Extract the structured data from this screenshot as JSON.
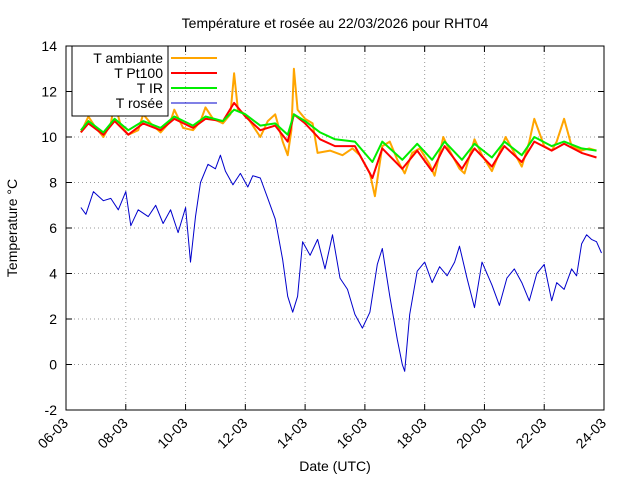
{
  "chart_data": {
    "type": "line",
    "title": "Température et rosée au 22/03/2026 pour RHT04",
    "xlabel": "Date (UTC)",
    "ylabel": "Temperature °C",
    "xlim": [
      "2026-03-06",
      "2026-03-24"
    ],
    "ylim": [
      -2,
      14
    ],
    "x_ticks": [
      "06-03",
      "08-03",
      "10-03",
      "12-03",
      "14-03",
      "16-03",
      "18-03",
      "20-03",
      "22-03",
      "24-03"
    ],
    "y_ticks": [
      -2,
      0,
      2,
      4,
      6,
      8,
      10,
      12,
      14
    ],
    "grid": true,
    "legend_position": "top-left",
    "series": [
      {
        "name": "T ambiante",
        "color": "#ffa500",
        "points": [
          [
            "2026-03-06 12:00",
            10.2
          ],
          [
            "2026-03-06 18:00",
            10.9
          ],
          [
            "2026-03-07 00:00",
            10.4
          ],
          [
            "2026-03-07 06:00",
            10.0
          ],
          [
            "2026-03-07 12:00",
            10.6
          ],
          [
            "2026-03-07 15:00",
            11.5
          ],
          [
            "2026-03-07 20:00",
            10.5
          ],
          [
            "2026-03-08 02:00",
            10.1
          ],
          [
            "2026-03-08 10:00",
            10.3
          ],
          [
            "2026-03-08 14:00",
            11.0
          ],
          [
            "2026-03-08 20:00",
            10.6
          ],
          [
            "2026-03-09 04:00",
            10.2
          ],
          [
            "2026-03-09 12:00",
            10.7
          ],
          [
            "2026-03-09 15:00",
            11.2
          ],
          [
            "2026-03-09 22:00",
            10.4
          ],
          [
            "2026-03-10 06:00",
            10.3
          ],
          [
            "2026-03-10 12:00",
            10.7
          ],
          [
            "2026-03-10 16:00",
            11.3
          ],
          [
            "2026-03-10 22:00",
            10.8
          ],
          [
            "2026-03-11 06:00",
            10.6
          ],
          [
            "2026-03-11 12:00",
            11.0
          ],
          [
            "2026-03-11 15:00",
            12.8
          ],
          [
            "2026-03-11 18:00",
            11.2
          ],
          [
            "2026-03-12 00:00",
            11.0
          ],
          [
            "2026-03-12 06:00",
            10.5
          ],
          [
            "2026-03-12 12:00",
            10.0
          ],
          [
            "2026-03-12 18:00",
            10.7
          ],
          [
            "2026-03-13 00:00",
            11.0
          ],
          [
            "2026-03-13 06:00",
            9.8
          ],
          [
            "2026-03-13 10:00",
            9.2
          ],
          [
            "2026-03-13 13:00",
            10.3
          ],
          [
            "2026-03-13 15:00",
            13.0
          ],
          [
            "2026-03-13 18:00",
            11.2
          ],
          [
            "2026-03-14 00:00",
            10.8
          ],
          [
            "2026-03-14 06:00",
            10.6
          ],
          [
            "2026-03-14 10:00",
            9.3
          ],
          [
            "2026-03-14 20:00",
            9.4
          ],
          [
            "2026-03-15 06:00",
            9.2
          ],
          [
            "2026-03-15 14:00",
            9.5
          ],
          [
            "2026-03-15 20:00",
            9.2
          ],
          [
            "2026-03-16 04:00",
            8.4
          ],
          [
            "2026-03-16 08:00",
            7.4
          ],
          [
            "2026-03-16 14:00",
            9.6
          ],
          [
            "2026-03-16 20:00",
            9.8
          ],
          [
            "2026-03-17 02:00",
            9.0
          ],
          [
            "2026-03-17 08:00",
            8.4
          ],
          [
            "2026-03-17 14:00",
            9.3
          ],
          [
            "2026-03-17 20:00",
            9.5
          ],
          [
            "2026-03-18 04:00",
            8.8
          ],
          [
            "2026-03-18 08:00",
            8.3
          ],
          [
            "2026-03-18 15:00",
            10.0
          ],
          [
            "2026-03-18 20:00",
            9.4
          ],
          [
            "2026-03-19 04:00",
            8.6
          ],
          [
            "2026-03-19 08:00",
            8.4
          ],
          [
            "2026-03-19 16:00",
            9.9
          ],
          [
            "2026-03-19 22:00",
            9.2
          ],
          [
            "2026-03-20 06:00",
            8.5
          ],
          [
            "2026-03-20 12:00",
            9.3
          ],
          [
            "2026-03-20 17:00",
            10.0
          ],
          [
            "2026-03-21 00:00",
            9.3
          ],
          [
            "2026-03-21 06:00",
            8.7
          ],
          [
            "2026-03-21 12:00",
            9.8
          ],
          [
            "2026-03-21 16:00",
            10.8
          ],
          [
            "2026-03-22 00:00",
            9.6
          ],
          [
            "2026-03-22 06:00",
            9.4
          ],
          [
            "2026-03-22 10:00",
            9.8
          ],
          [
            "2026-03-22 16:00",
            10.8
          ],
          [
            "2026-03-22 22:00",
            9.6
          ],
          [
            "2026-03-23 06:00",
            9.4
          ],
          [
            "2026-03-23 12:00",
            9.5
          ],
          [
            "2026-03-23 18:00",
            9.4
          ]
        ]
      },
      {
        "name": "T Pt100",
        "color": "#ff0000",
        "points": [
          [
            "2026-03-06 12:00",
            10.2
          ],
          [
            "2026-03-06 18:00",
            10.6
          ],
          [
            "2026-03-07 06:00",
            10.1
          ],
          [
            "2026-03-07 15:00",
            10.7
          ],
          [
            "2026-03-08 02:00",
            10.1
          ],
          [
            "2026-03-08 14:00",
            10.6
          ],
          [
            "2026-03-09 04:00",
            10.3
          ],
          [
            "2026-03-09 15:00",
            10.8
          ],
          [
            "2026-03-10 06:00",
            10.4
          ],
          [
            "2026-03-10 16:00",
            10.8
          ],
          [
            "2026-03-11 06:00",
            10.7
          ],
          [
            "2026-03-11 15:00",
            11.5
          ],
          [
            "2026-03-12 00:00",
            10.9
          ],
          [
            "2026-03-12 12:00",
            10.3
          ],
          [
            "2026-03-13 00:00",
            10.5
          ],
          [
            "2026-03-13 10:00",
            9.8
          ],
          [
            "2026-03-13 15:00",
            11.0
          ],
          [
            "2026-03-14 00:00",
            10.6
          ],
          [
            "2026-03-14 12:00",
            9.9
          ],
          [
            "2026-03-15 00:00",
            9.6
          ],
          [
            "2026-03-15 16:00",
            9.6
          ],
          [
            "2026-03-16 06:00",
            8.2
          ],
          [
            "2026-03-16 14:00",
            9.5
          ],
          [
            "2026-03-17 06:00",
            8.6
          ],
          [
            "2026-03-17 18:00",
            9.4
          ],
          [
            "2026-03-18 06:00",
            8.5
          ],
          [
            "2026-03-18 16:00",
            9.6
          ],
          [
            "2026-03-19 06:00",
            8.6
          ],
          [
            "2026-03-19 16:00",
            9.5
          ],
          [
            "2026-03-20 06:00",
            8.7
          ],
          [
            "2026-03-20 16:00",
            9.6
          ],
          [
            "2026-03-21 06:00",
            8.9
          ],
          [
            "2026-03-21 16:00",
            9.8
          ],
          [
            "2026-03-22 06:00",
            9.4
          ],
          [
            "2026-03-22 16:00",
            9.7
          ],
          [
            "2026-03-23 06:00",
            9.3
          ],
          [
            "2026-03-23 18:00",
            9.1
          ]
        ]
      },
      {
        "name": "T IR",
        "color": "#00ee00",
        "points": [
          [
            "2026-03-06 12:00",
            10.3
          ],
          [
            "2026-03-06 18:00",
            10.7
          ],
          [
            "2026-03-07 06:00",
            10.2
          ],
          [
            "2026-03-07 15:00",
            10.8
          ],
          [
            "2026-03-08 02:00",
            10.3
          ],
          [
            "2026-03-08 14:00",
            10.7
          ],
          [
            "2026-03-09 04:00",
            10.4
          ],
          [
            "2026-03-09 15:00",
            10.9
          ],
          [
            "2026-03-10 06:00",
            10.5
          ],
          [
            "2026-03-10 16:00",
            10.9
          ],
          [
            "2026-03-11 06:00",
            10.7
          ],
          [
            "2026-03-11 15:00",
            11.2
          ],
          [
            "2026-03-12 00:00",
            11.0
          ],
          [
            "2026-03-12 12:00",
            10.5
          ],
          [
            "2026-03-13 00:00",
            10.6
          ],
          [
            "2026-03-13 10:00",
            10.1
          ],
          [
            "2026-03-13 15:00",
            11.0
          ],
          [
            "2026-03-14 00:00",
            10.7
          ],
          [
            "2026-03-14 12:00",
            10.2
          ],
          [
            "2026-03-15 00:00",
            9.9
          ],
          [
            "2026-03-15 16:00",
            9.8
          ],
          [
            "2026-03-16 06:00",
            8.9
          ],
          [
            "2026-03-16 14:00",
            9.8
          ],
          [
            "2026-03-17 06:00",
            9.0
          ],
          [
            "2026-03-17 18:00",
            9.7
          ],
          [
            "2026-03-18 06:00",
            9.0
          ],
          [
            "2026-03-18 16:00",
            9.8
          ],
          [
            "2026-03-19 06:00",
            9.0
          ],
          [
            "2026-03-19 16:00",
            9.7
          ],
          [
            "2026-03-20 06:00",
            9.1
          ],
          [
            "2026-03-20 16:00",
            9.8
          ],
          [
            "2026-03-21 06:00",
            9.2
          ],
          [
            "2026-03-21 16:00",
            10.0
          ],
          [
            "2026-03-22 06:00",
            9.6
          ],
          [
            "2026-03-22 16:00",
            9.8
          ],
          [
            "2026-03-23 06:00",
            9.5
          ],
          [
            "2026-03-23 18:00",
            9.4
          ]
        ]
      },
      {
        "name": "T rosée",
        "color": "#0000cc",
        "points": [
          [
            "2026-03-06 12:00",
            6.9
          ],
          [
            "2026-03-06 16:00",
            6.6
          ],
          [
            "2026-03-06 22:00",
            7.6
          ],
          [
            "2026-03-07 06:00",
            7.2
          ],
          [
            "2026-03-07 12:00",
            7.3
          ],
          [
            "2026-03-07 18:00",
            6.8
          ],
          [
            "2026-03-08 00:00",
            7.6
          ],
          [
            "2026-03-08 04:00",
            6.1
          ],
          [
            "2026-03-08 10:00",
            6.8
          ],
          [
            "2026-03-08 18:00",
            6.5
          ],
          [
            "2026-03-09 00:00",
            7.0
          ],
          [
            "2026-03-09 06:00",
            6.2
          ],
          [
            "2026-03-09 12:00",
            6.8
          ],
          [
            "2026-03-09 18:00",
            5.8
          ],
          [
            "2026-03-10 00:00",
            6.9
          ],
          [
            "2026-03-10 04:00",
            4.5
          ],
          [
            "2026-03-10 08:00",
            6.5
          ],
          [
            "2026-03-10 12:00",
            8.0
          ],
          [
            "2026-03-10 18:00",
            8.8
          ],
          [
            "2026-03-11 00:00",
            8.6
          ],
          [
            "2026-03-11 04:00",
            9.2
          ],
          [
            "2026-03-11 08:00",
            8.5
          ],
          [
            "2026-03-11 14:00",
            7.9
          ],
          [
            "2026-03-11 20:00",
            8.4
          ],
          [
            "2026-03-12 02:00",
            7.8
          ],
          [
            "2026-03-12 06:00",
            8.3
          ],
          [
            "2026-03-12 12:00",
            8.2
          ],
          [
            "2026-03-12 18:00",
            7.3
          ],
          [
            "2026-03-13 00:00",
            6.4
          ],
          [
            "2026-03-13 06:00",
            4.6
          ],
          [
            "2026-03-13 10:00",
            3.0
          ],
          [
            "2026-03-13 14:00",
            2.3
          ],
          [
            "2026-03-13 18:00",
            3.0
          ],
          [
            "2026-03-13 22:00",
            5.4
          ],
          [
            "2026-03-14 04:00",
            4.8
          ],
          [
            "2026-03-14 10:00",
            5.5
          ],
          [
            "2026-03-14 16:00",
            4.2
          ],
          [
            "2026-03-14 22:00",
            5.7
          ],
          [
            "2026-03-15 04:00",
            3.8
          ],
          [
            "2026-03-15 10:00",
            3.3
          ],
          [
            "2026-03-15 16:00",
            2.2
          ],
          [
            "2026-03-15 22:00",
            1.6
          ],
          [
            "2026-03-16 04:00",
            2.3
          ],
          [
            "2026-03-16 10:00",
            4.4
          ],
          [
            "2026-03-16 14:00",
            5.1
          ],
          [
            "2026-03-16 20:00",
            3.0
          ],
          [
            "2026-03-17 02:00",
            1.1
          ],
          [
            "2026-03-17 06:00",
            0.0
          ],
          [
            "2026-03-17 08:00",
            -0.3
          ],
          [
            "2026-03-17 12:00",
            2.2
          ],
          [
            "2026-03-17 18:00",
            4.1
          ],
          [
            "2026-03-18 00:00",
            4.5
          ],
          [
            "2026-03-18 06:00",
            3.6
          ],
          [
            "2026-03-18 12:00",
            4.3
          ],
          [
            "2026-03-18 18:00",
            3.9
          ],
          [
            "2026-03-19 00:00",
            4.5
          ],
          [
            "2026-03-19 04:00",
            5.2
          ],
          [
            "2026-03-19 10:00",
            3.8
          ],
          [
            "2026-03-19 16:00",
            2.5
          ],
          [
            "2026-03-19 22:00",
            4.5
          ],
          [
            "2026-03-20 06:00",
            3.5
          ],
          [
            "2026-03-20 12:00",
            2.6
          ],
          [
            "2026-03-20 18:00",
            3.8
          ],
          [
            "2026-03-21 00:00",
            4.2
          ],
          [
            "2026-03-21 06:00",
            3.6
          ],
          [
            "2026-03-21 12:00",
            2.8
          ],
          [
            "2026-03-21 18:00",
            4.0
          ],
          [
            "2026-03-22 00:00",
            4.4
          ],
          [
            "2026-03-22 06:00",
            2.8
          ],
          [
            "2026-03-22 10:00",
            3.6
          ],
          [
            "2026-03-22 16:00",
            3.3
          ],
          [
            "2026-03-22 22:00",
            4.2
          ],
          [
            "2026-03-23 02:00",
            3.9
          ],
          [
            "2026-03-23 06:00",
            5.3
          ],
          [
            "2026-03-23 10:00",
            5.7
          ],
          [
            "2026-03-23 14:00",
            5.5
          ],
          [
            "2026-03-23 18:00",
            5.4
          ],
          [
            "2026-03-23 22:00",
            4.9
          ]
        ]
      }
    ]
  }
}
